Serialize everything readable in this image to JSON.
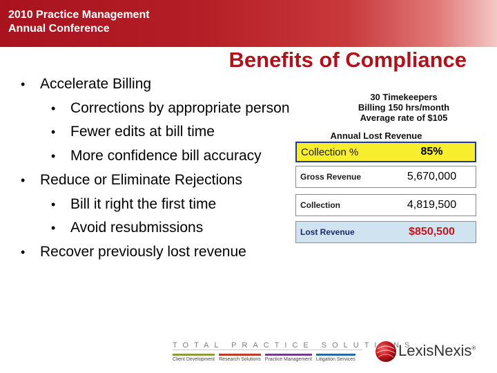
{
  "header": {
    "line1": "2010 Practice Management",
    "line2": "Annual Conference"
  },
  "slide_title": "Benefits of Compliance",
  "bullets": [
    {
      "text": "Accelerate Billing",
      "level": 1
    },
    {
      "text": "Corrections by appropriate person",
      "level": 2
    },
    {
      "text": "Fewer edits at bill time",
      "level": 2
    },
    {
      "text": "More confidence bill accuracy",
      "level": 2
    },
    {
      "text": "Reduce or Eliminate Rejections",
      "level": 1
    },
    {
      "text": "Bill it right the first time",
      "level": 2
    },
    {
      "text": "Avoid resubmissions",
      "level": 2
    },
    {
      "text": "Recover previously lost revenue",
      "level": 1
    }
  ],
  "bullet_glyph": "•",
  "stats": {
    "line1": "30 Timekeepers",
    "line2": "Billing 150 hrs/month",
    "line3": "Average rate of $105",
    "table_title": "Annual Lost Revenue",
    "rows": [
      {
        "label": "Collection %",
        "value": "85%"
      },
      {
        "label": "Gross Revenue",
        "value": "5,670,000"
      },
      {
        "label": "Collection",
        "value": "4,819,500"
      },
      {
        "label": "Lost Revenue",
        "value": "$850,500"
      }
    ]
  },
  "footer": {
    "brand": "TOTAL PRACTICE SOLUTIONS",
    "categories": [
      "Client Development",
      "Research Solutions",
      "Practice Management",
      "Litigation Services"
    ],
    "logo_text": "LexisNexis",
    "logo_mark": "®"
  },
  "colors": {
    "header_red": "#a8131e",
    "title_red": "#b0121c",
    "highlight_yellow": "#f7ee2e",
    "lost_row_blue": "#cfe3f0",
    "lost_value_red": "#c8141c"
  }
}
